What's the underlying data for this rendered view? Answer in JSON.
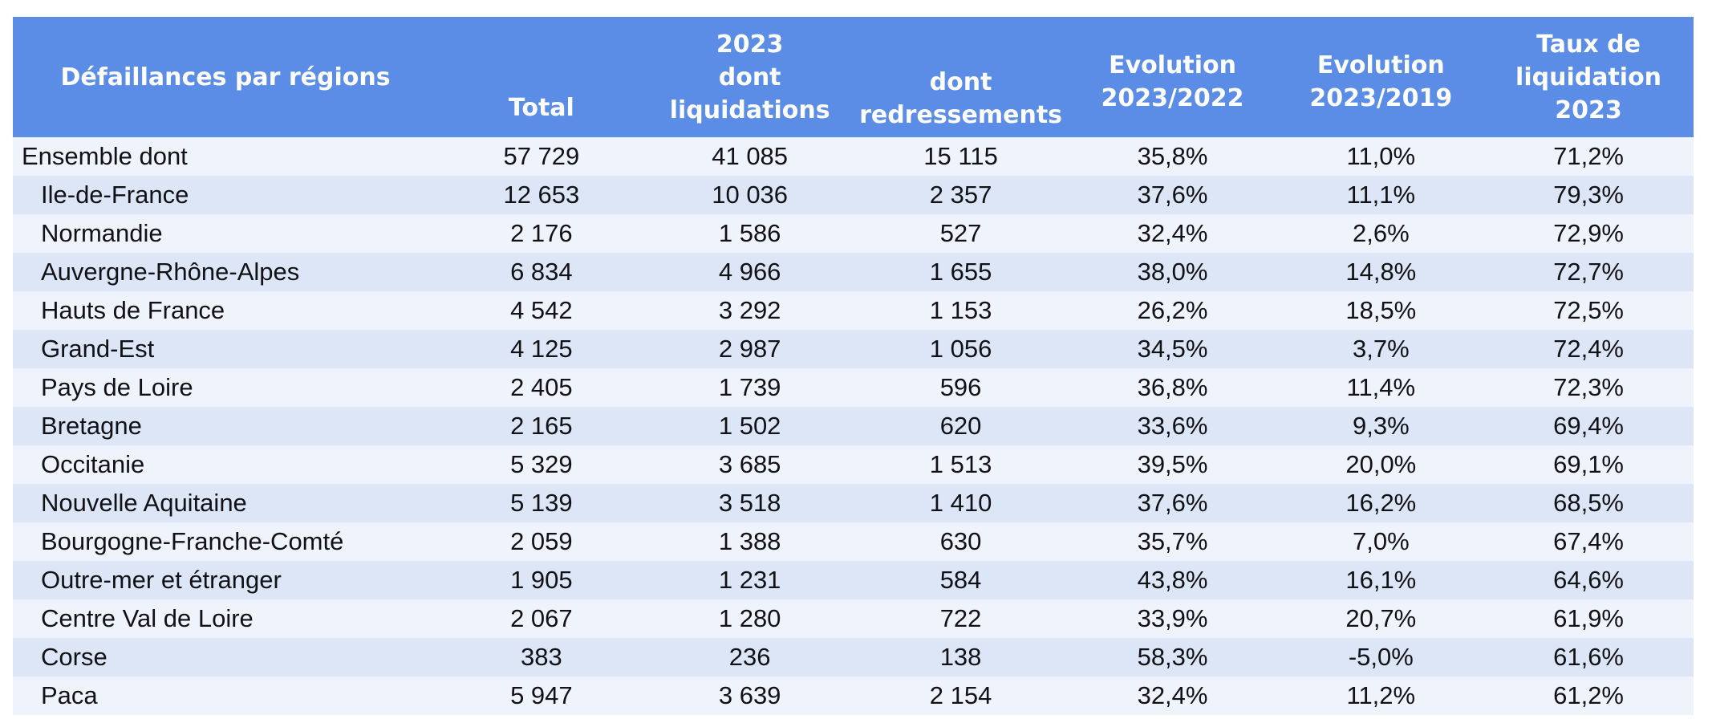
{
  "colors": {
    "header_bg": "#5b8de6",
    "header_text": "#ffffff",
    "row_light": "#eff3fc",
    "row_dark": "#dce6f7",
    "body_text": "#121216"
  },
  "table": {
    "header": [
      {
        "id": "region",
        "label": "Défaillances par régions"
      },
      {
        "id": "total",
        "label": "Total"
      },
      {
        "id": "liquidations",
        "label": "2023\ndont\nliquidations"
      },
      {
        "id": "redressements",
        "label": "dont\nredressements"
      },
      {
        "id": "evo_2023_2022",
        "label": "Evolution\n2023/2022"
      },
      {
        "id": "evo_2023_2019",
        "label": "Evolution\n2023/2019"
      },
      {
        "id": "taux",
        "label": "Taux de\nliquidation\n2023"
      }
    ],
    "rows": [
      {
        "region": "Ensemble dont",
        "indent": false,
        "total": "57 729",
        "liquidations": "41 085",
        "redressements": "15 115",
        "evo_2023_2022": "35,8%",
        "evo_2023_2019": "11,0%",
        "taux": "71,2%"
      },
      {
        "region": "Ile-de-France",
        "indent": true,
        "total": "12 653",
        "liquidations": "10 036",
        "redressements": "2 357",
        "evo_2023_2022": "37,6%",
        "evo_2023_2019": "11,1%",
        "taux": "79,3%"
      },
      {
        "region": "Normandie",
        "indent": true,
        "total": "2 176",
        "liquidations": "1 586",
        "redressements": "527",
        "evo_2023_2022": "32,4%",
        "evo_2023_2019": "2,6%",
        "taux": "72,9%"
      },
      {
        "region": "Auvergne-Rhône-Alpes",
        "indent": true,
        "total": "6 834",
        "liquidations": "4 966",
        "redressements": "1 655",
        "evo_2023_2022": "38,0%",
        "evo_2023_2019": "14,8%",
        "taux": "72,7%"
      },
      {
        "region": "Hauts de France",
        "indent": true,
        "total": "4 542",
        "liquidations": "3 292",
        "redressements": "1 153",
        "evo_2023_2022": "26,2%",
        "evo_2023_2019": "18,5%",
        "taux": "72,5%"
      },
      {
        "region": "Grand-Est",
        "indent": true,
        "total": "4 125",
        "liquidations": "2 987",
        "redressements": "1 056",
        "evo_2023_2022": "34,5%",
        "evo_2023_2019": "3,7%",
        "taux": "72,4%"
      },
      {
        "region": "Pays de Loire",
        "indent": true,
        "total": "2 405",
        "liquidations": "1 739",
        "redressements": "596",
        "evo_2023_2022": "36,8%",
        "evo_2023_2019": "11,4%",
        "taux": "72,3%"
      },
      {
        "region": "Bretagne",
        "indent": true,
        "total": "2 165",
        "liquidations": "1 502",
        "redressements": "620",
        "evo_2023_2022": "33,6%",
        "evo_2023_2019": "9,3%",
        "taux": "69,4%"
      },
      {
        "region": "Occitanie",
        "indent": true,
        "total": "5 329",
        "liquidations": "3 685",
        "redressements": "1 513",
        "evo_2023_2022": "39,5%",
        "evo_2023_2019": "20,0%",
        "taux": "69,1%"
      },
      {
        "region": "Nouvelle Aquitaine",
        "indent": true,
        "total": "5 139",
        "liquidations": "3 518",
        "redressements": "1 410",
        "evo_2023_2022": "37,6%",
        "evo_2023_2019": "16,2%",
        "taux": "68,5%"
      },
      {
        "region": "Bourgogne-Franche-Comté",
        "indent": true,
        "total": "2 059",
        "liquidations": "1 388",
        "redressements": "630",
        "evo_2023_2022": "35,7%",
        "evo_2023_2019": "7,0%",
        "taux": "67,4%"
      },
      {
        "region": "Outre-mer et étranger",
        "indent": true,
        "total": "1 905",
        "liquidations": "1 231",
        "redressements": "584",
        "evo_2023_2022": "43,8%",
        "evo_2023_2019": "16,1%",
        "taux": "64,6%"
      },
      {
        "region": "Centre Val de Loire",
        "indent": true,
        "total": "2 067",
        "liquidations": "1 280",
        "redressements": "722",
        "evo_2023_2022": "33,9%",
        "evo_2023_2019": "20,7%",
        "taux": "61,9%"
      },
      {
        "region": "Corse",
        "indent": true,
        "total": "383",
        "liquidations": "236",
        "redressements": "138",
        "evo_2023_2022": "58,3%",
        "evo_2023_2019": "-5,0%",
        "taux": "61,6%"
      },
      {
        "region": "Paca",
        "indent": true,
        "total": "5 947",
        "liquidations": "3 639",
        "redressements": "2 154",
        "evo_2023_2022": "32,4%",
        "evo_2023_2019": "11,2%",
        "taux": "61,2%"
      }
    ]
  },
  "chart_data": {
    "type": "table",
    "title": "Défaillances par régions",
    "columns": [
      "Défaillances par régions",
      "Total",
      "2023 dont liquidations",
      "dont redressements",
      "Evolution 2023/2022",
      "Evolution 2023/2019",
      "Taux de liquidation 2023"
    ],
    "rows": [
      {
        "region": "Ensemble dont",
        "total": 57729,
        "liquidations": 41085,
        "redressements": 15115,
        "evolution_2023_2022_pct": 35.8,
        "evolution_2023_2019_pct": 11.0,
        "taux_liquidation_2023_pct": 71.2
      },
      {
        "region": "Ile-de-France",
        "total": 12653,
        "liquidations": 10036,
        "redressements": 2357,
        "evolution_2023_2022_pct": 37.6,
        "evolution_2023_2019_pct": 11.1,
        "taux_liquidation_2023_pct": 79.3
      },
      {
        "region": "Normandie",
        "total": 2176,
        "liquidations": 1586,
        "redressements": 527,
        "evolution_2023_2022_pct": 32.4,
        "evolution_2023_2019_pct": 2.6,
        "taux_liquidation_2023_pct": 72.9
      },
      {
        "region": "Auvergne-Rhône-Alpes",
        "total": 6834,
        "liquidations": 4966,
        "redressements": 1655,
        "evolution_2023_2022_pct": 38.0,
        "evolution_2023_2019_pct": 14.8,
        "taux_liquidation_2023_pct": 72.7
      },
      {
        "region": "Hauts de France",
        "total": 4542,
        "liquidations": 3292,
        "redressements": 1153,
        "evolution_2023_2022_pct": 26.2,
        "evolution_2023_2019_pct": 18.5,
        "taux_liquidation_2023_pct": 72.5
      },
      {
        "region": "Grand-Est",
        "total": 4125,
        "liquidations": 2987,
        "redressements": 1056,
        "evolution_2023_2022_pct": 34.5,
        "evolution_2023_2019_pct": 3.7,
        "taux_liquidation_2023_pct": 72.4
      },
      {
        "region": "Pays de Loire",
        "total": 2405,
        "liquidations": 1739,
        "redressements": 596,
        "evolution_2023_2022_pct": 36.8,
        "evolution_2023_2019_pct": 11.4,
        "taux_liquidation_2023_pct": 72.3
      },
      {
        "region": "Bretagne",
        "total": 2165,
        "liquidations": 1502,
        "redressements": 620,
        "evolution_2023_2022_pct": 33.6,
        "evolution_2023_2019_pct": 9.3,
        "taux_liquidation_2023_pct": 69.4
      },
      {
        "region": "Occitanie",
        "total": 5329,
        "liquidations": 3685,
        "redressements": 1513,
        "evolution_2023_2022_pct": 39.5,
        "evolution_2023_2019_pct": 20.0,
        "taux_liquidation_2023_pct": 69.1
      },
      {
        "region": "Nouvelle Aquitaine",
        "total": 5139,
        "liquidations": 3518,
        "redressements": 1410,
        "evolution_2023_2022_pct": 37.6,
        "evolution_2023_2019_pct": 16.2,
        "taux_liquidation_2023_pct": 68.5
      },
      {
        "region": "Bourgogne-Franche-Comté",
        "total": 2059,
        "liquidations": 1388,
        "redressements": 630,
        "evolution_2023_2022_pct": 35.7,
        "evolution_2023_2019_pct": 7.0,
        "taux_liquidation_2023_pct": 67.4
      },
      {
        "region": "Outre-mer et étranger",
        "total": 1905,
        "liquidations": 1231,
        "redressements": 584,
        "evolution_2023_2022_pct": 43.8,
        "evolution_2023_2019_pct": 16.1,
        "taux_liquidation_2023_pct": 64.6
      },
      {
        "region": "Centre Val de Loire",
        "total": 2067,
        "liquidations": 1280,
        "redressements": 722,
        "evolution_2023_2022_pct": 33.9,
        "evolution_2023_2019_pct": 20.7,
        "taux_liquidation_2023_pct": 61.9
      },
      {
        "region": "Corse",
        "total": 383,
        "liquidations": 236,
        "redressements": 138,
        "evolution_2023_2022_pct": 58.3,
        "evolution_2023_2019_pct": -5.0,
        "taux_liquidation_2023_pct": 61.6
      },
      {
        "region": "Paca",
        "total": 5947,
        "liquidations": 3639,
        "redressements": 2154,
        "evolution_2023_2022_pct": 32.4,
        "evolution_2023_2019_pct": 11.2,
        "taux_liquidation_2023_pct": 61.2
      }
    ]
  }
}
